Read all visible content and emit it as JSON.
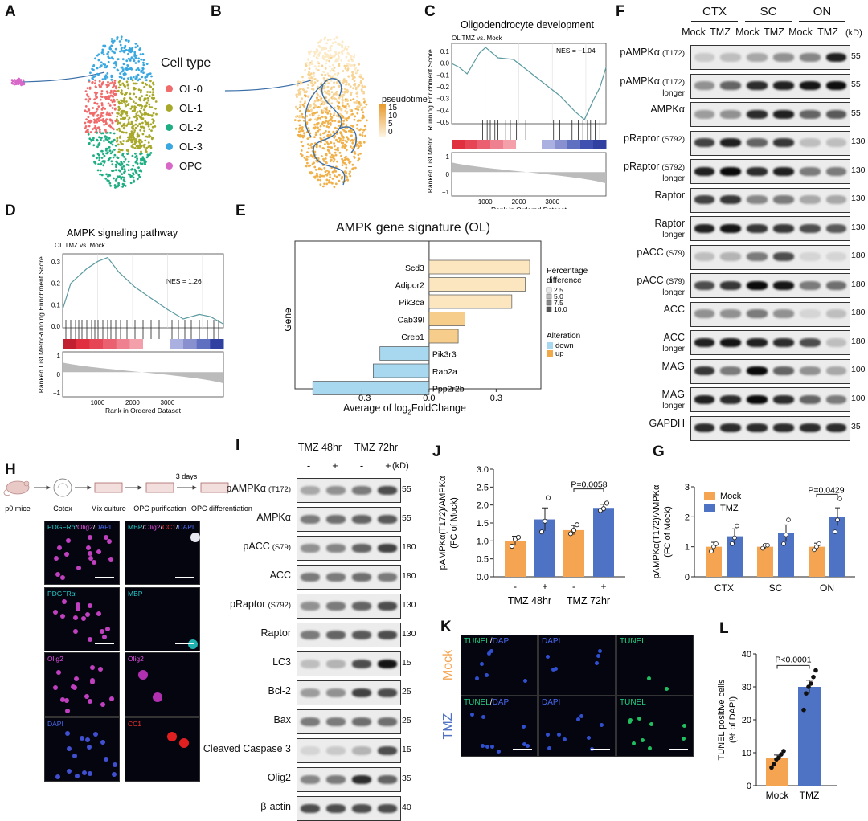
{
  "panels": {
    "A": {
      "letter": "A",
      "legend_title": "Cell type",
      "legend": [
        {
          "label": "OL-0",
          "color": "#f06b6b"
        },
        {
          "label": "OL-1",
          "color": "#a8a82a"
        },
        {
          "label": "OL-2",
          "color": "#1fae83"
        },
        {
          "label": "OL-3",
          "color": "#3aa8e0"
        },
        {
          "label": "OPC",
          "color": "#d868c8"
        }
      ]
    },
    "B": {
      "letter": "B",
      "colorbar_title": "pseudotime",
      "ticks": [
        "15",
        "10",
        "5",
        "0"
      ]
    },
    "C": {
      "letter": "C",
      "title": "Oligodendrocyte development",
      "subtitle": "OL TMZ vs. Mock",
      "nes": "NES = −1.04",
      "ylabel_top": "Running Enrichment Score",
      "ylabel_bottom": "Ranked List Metric",
      "xlabel": "Rank in Ordered Dataset",
      "yticks_top": [
        "0.1",
        "0.0",
        "−0.1",
        "−0.2",
        "−0.3",
        "−0.4",
        "−0.5"
      ],
      "yticks_bottom": [
        "1",
        "0",
        "−1"
      ],
      "xticks": [
        "1000",
        "2000",
        "3000"
      ]
    },
    "D": {
      "letter": "D",
      "title": "AMPK signaling pathway",
      "subtitle": "OL TMZ vs. Mock",
      "nes": "NES = 1.26",
      "ylabel_top": "Running Enrichment Score",
      "ylabel_bottom": "Ranked List Metric",
      "xlabel": "Rank in Ordered Dataset",
      "yticks_top": [
        "0.3",
        "0.2",
        "0.1",
        "0.0"
      ],
      "yticks_bottom": [
        "1",
        "0",
        "−1"
      ],
      "xticks": [
        "1000",
        "2000",
        "3000"
      ]
    },
    "E": {
      "letter": "E",
      "title": "AMPK gene signature (OL)",
      "ylabel": "Gene",
      "xlabel": "Average of log",
      "xlabel_sub": "2",
      "xlabel_tail": "FoldChange",
      "xticks": [
        "−0.3",
        "0.0",
        "0.3"
      ],
      "legend_pct_title": "Percentage",
      "legend_pct_title2": "difference",
      "legend_pct": [
        "2.5",
        "5.0",
        "7.5",
        "10.0"
      ],
      "legend_alt_title": "Alteration",
      "legend_alt": [
        "down",
        "up"
      ]
    },
    "F": {
      "letter": "F",
      "groups": [
        "CTX",
        "SC",
        "ON"
      ],
      "lanes": [
        "Mock",
        "TMZ",
        "Mock",
        "TMZ",
        "Mock",
        "TMZ"
      ],
      "kd": "(kD)",
      "rows": [
        {
          "label": "pAMPKα",
          "sub": "(T172)",
          "line2": "",
          "mw": "55"
        },
        {
          "label": "pAMPKα",
          "sub": "(T172)",
          "line2": "longer",
          "mw": "55"
        },
        {
          "label": "AMPKα",
          "sub": "",
          "line2": "",
          "mw": "55"
        },
        {
          "label": "pRaptor",
          "sub": "(S792)",
          "line2": "",
          "mw": "130"
        },
        {
          "label": "pRaptor",
          "sub": "(S792)",
          "line2": "longer",
          "mw": "130"
        },
        {
          "label": "Raptor",
          "sub": "",
          "line2": "",
          "mw": "130"
        },
        {
          "label": "Raptor",
          "sub": "",
          "line2": "longer",
          "mw": "130"
        },
        {
          "label": "pACC",
          "sub": "(S79)",
          "line2": "",
          "mw": "180"
        },
        {
          "label": "pACC",
          "sub": "(S79)",
          "line2": "longer",
          "mw": "180"
        },
        {
          "label": "ACC",
          "sub": "",
          "line2": "",
          "mw": "180"
        },
        {
          "label": "ACC",
          "sub": "",
          "line2": "longer",
          "mw": "180"
        },
        {
          "label": "MAG",
          "sub": "",
          "line2": "",
          "mw": "100"
        },
        {
          "label": "MAG",
          "sub": "",
          "line2": "longer",
          "mw": "100"
        },
        {
          "label": "GAPDH",
          "sub": "",
          "line2": "",
          "mw": "35"
        }
      ]
    },
    "H": {
      "letter": "H",
      "workflow": [
        "p0 mice",
        "Cotex",
        "Mix culture",
        "OPC purification",
        "OPC differentiation"
      ],
      "days": "3 days",
      "left_col": [
        {
          "parts": [
            {
              "t": "PDGFRα",
              "c": "#22c8c8"
            },
            {
              "t": "/",
              "c": "#ffffff"
            },
            {
              "t": "Olig2",
              "c": "#e050e0"
            },
            {
              "t": "/",
              "c": "#ffffff"
            },
            {
              "t": "DAPI",
              "c": "#4a6af0"
            }
          ]
        },
        {
          "parts": [
            {
              "t": "PDGFRα",
              "c": "#22c8c8"
            }
          ]
        },
        {
          "parts": [
            {
              "t": "Olig2",
              "c": "#e050e0"
            }
          ]
        },
        {
          "parts": [
            {
              "t": "DAPI",
              "c": "#4a6af0"
            }
          ]
        }
      ],
      "right_col": [
        {
          "parts": [
            {
              "t": "MBP",
              "c": "#22c8c8"
            },
            {
              "t": "/",
              "c": "#ffffff"
            },
            {
              "t": "Olig2",
              "c": "#e050e0"
            },
            {
              "t": "/",
              "c": "#ffffff"
            },
            {
              "t": "CC1",
              "c": "#f03030"
            },
            {
              "t": "/",
              "c": "#ffffff"
            },
            {
              "t": "DAPI",
              "c": "#4a6af0"
            }
          ]
        },
        {
          "parts": [
            {
              "t": "MBP",
              "c": "#22c8c8"
            }
          ]
        },
        {
          "parts": [
            {
              "t": "Olig2",
              "c": "#e050e0"
            }
          ]
        },
        {
          "parts": [
            {
              "t": "CC1",
              "c": "#f03030"
            }
          ]
        }
      ]
    },
    "I": {
      "letter": "I",
      "groups": [
        "TMZ 48hr",
        "TMZ 72hr"
      ],
      "lanes": [
        "-",
        "+",
        "-",
        "+"
      ],
      "kd": "(kD)",
      "rows": [
        {
          "label": "pAMPKα",
          "sub": "(T172)",
          "mw": "55"
        },
        {
          "label": "AMPKα",
          "sub": "",
          "mw": "55"
        },
        {
          "label": "pACC",
          "sub": "(S79)",
          "mw": "180"
        },
        {
          "label": "ACC",
          "sub": "",
          "mw": "180"
        },
        {
          "label": "pRaptor",
          "sub": "(S792)",
          "mw": "130"
        },
        {
          "label": "Raptor",
          "sub": "",
          "mw": "130"
        },
        {
          "label": "LC3",
          "sub": "",
          "mw": "15"
        },
        {
          "label": "Bcl-2",
          "sub": "",
          "mw": "25"
        },
        {
          "label": "Bax",
          "sub": "",
          "mw": "25"
        },
        {
          "label": "Cleaved Caspase 3",
          "sub": "",
          "mw": "15"
        },
        {
          "label": "Olig2",
          "sub": "",
          "mw": "35"
        },
        {
          "label": "β-actin",
          "sub": "",
          "mw": "40"
        }
      ]
    },
    "J": {
      "letter": "J",
      "ylabel": "pAMPKα(T172)/AMPKα",
      "ylabel2": "(FC of Mock)",
      "yticks": [
        "0.0",
        "0.5",
        "1.0",
        "1.5",
        "2.0",
        "2.5",
        "3.0"
      ],
      "signs": [
        "-",
        "+",
        "-",
        "+"
      ],
      "groups": [
        "TMZ 48hr",
        "TMZ 72hr"
      ],
      "pvalue": "P=0.0058"
    },
    "G": {
      "letter": "G",
      "ylabel": "pAMPKα(T172)/AMPKα",
      "ylabel2": "(FC of Mock)",
      "yticks": [
        "0",
        "1",
        "2",
        "3"
      ],
      "groups": [
        "CTX",
        "SC",
        "ON"
      ],
      "legend": [
        "Mock",
        "TMZ"
      ],
      "pvalue": "P=0.0429"
    },
    "K": {
      "letter": "K",
      "rows": [
        "Mock",
        "TMZ"
      ],
      "cols": [
        [
          {
            "t": "TUNEL",
            "c": "#20d080"
          },
          {
            "t": "/",
            "c": "#ffffff"
          },
          {
            "t": "DAPI",
            "c": "#4a6af0"
          }
        ],
        [
          {
            "t": "DAPI",
            "c": "#4a6af0"
          }
        ],
        [
          {
            "t": "TUNEL",
            "c": "#20d080"
          }
        ]
      ]
    },
    "L": {
      "letter": "L",
      "ylabel": "TUNEL positive cells",
      "ylabel2": "(% of DAPI)",
      "yticks": [
        "0",
        "10",
        "20",
        "30",
        "40"
      ],
      "categories": [
        "Mock",
        "TMZ"
      ],
      "pvalue": "P<0.0001"
    }
  },
  "chart_data": [
    {
      "id": "E",
      "type": "bar",
      "title": "AMPK gene signature (OL)",
      "categories": [
        "Scd3",
        "Adipor2",
        "Pik3ca",
        "Cab39l",
        "Creb1",
        "Pik3r3",
        "Rab2a",
        "Ppp2r2b"
      ],
      "values": [
        0.45,
        0.43,
        0.37,
        0.16,
        0.13,
        -0.22,
        -0.25,
        -0.52
      ],
      "alteration": [
        "up",
        "up",
        "up",
        "up",
        "up",
        "down",
        "down",
        "down"
      ],
      "percentage_difference": [
        2.5,
        2.5,
        2.5,
        7.5,
        7.5,
        2.5,
        2.5,
        2.5
      ],
      "xlabel": "Average of log2FoldChange",
      "ylabel": "Gene",
      "xlim": [
        -0.6,
        0.5
      ],
      "colors": {
        "up_light": "#fbe6c0",
        "up_mid": "#f6cd8a",
        "up_dark": "#f0a848",
        "down": "#a8d8f0"
      }
    },
    {
      "id": "J",
      "type": "bar",
      "categories": [
        "TMZ 48hr -",
        "TMZ 48hr +",
        "TMZ 72hr -",
        "TMZ 72hr +"
      ],
      "values": [
        1.0,
        1.6,
        1.3,
        1.92
      ],
      "errors": [
        0.13,
        0.32,
        0.13,
        0.1
      ],
      "points": [
        [
          0.85,
          1.05,
          1.1
        ],
        [
          1.25,
          1.55,
          2.2
        ],
        [
          1.2,
          1.3,
          1.45
        ],
        [
          1.85,
          1.9,
          2.05
        ]
      ],
      "ylabel": "pAMPKα(T172)/AMPKα (FC of Mock)",
      "ylim": [
        0,
        3.0
      ],
      "colors": [
        "#f5a551",
        "#4e72c4",
        "#f5a551",
        "#4e72c4"
      ]
    },
    {
      "id": "G",
      "type": "bar",
      "categories": [
        "CTX",
        "SC",
        "ON"
      ],
      "series": [
        {
          "name": "Mock",
          "values": [
            1.0,
            1.0,
            1.0
          ],
          "errors": [
            0.15,
            0.08,
            0.12
          ],
          "points": [
            [
              0.85,
              1.0,
              1.1
            ],
            [
              0.95,
              1.05,
              1.05
            ],
            [
              0.9,
              1.0,
              1.1
            ]
          ]
        },
        {
          "name": "TMZ",
          "values": [
            1.35,
            1.45,
            2.0
          ],
          "errors": [
            0.25,
            0.28,
            0.3
          ],
          "points": [
            [
              1.1,
              1.3,
              1.7
            ],
            [
              1.1,
              1.4,
              1.9
            ],
            [
              1.5,
              1.9,
              2.6
            ]
          ]
        }
      ],
      "ylabel": "pAMPKα(T172)/AMPKα (FC of Mock)",
      "ylim": [
        0,
        3.5
      ],
      "colors": [
        "#f5a551",
        "#4e72c4"
      ]
    },
    {
      "id": "L",
      "type": "bar",
      "categories": [
        "Mock",
        "TMZ"
      ],
      "values": [
        8.3,
        30.0
      ],
      "errors": [
        1.0,
        2.0
      ],
      "points": [
        [
          5.5,
          6.5,
          8.0,
          8.5,
          9.5,
          10.5
        ],
        [
          23,
          28,
          30,
          31,
          33,
          35
        ]
      ],
      "ylabel": "TUNEL positive cells (% of DAPI)",
      "ylim": [
        0,
        40
      ],
      "colors": [
        "#f5a551",
        "#4e72c4"
      ]
    }
  ]
}
